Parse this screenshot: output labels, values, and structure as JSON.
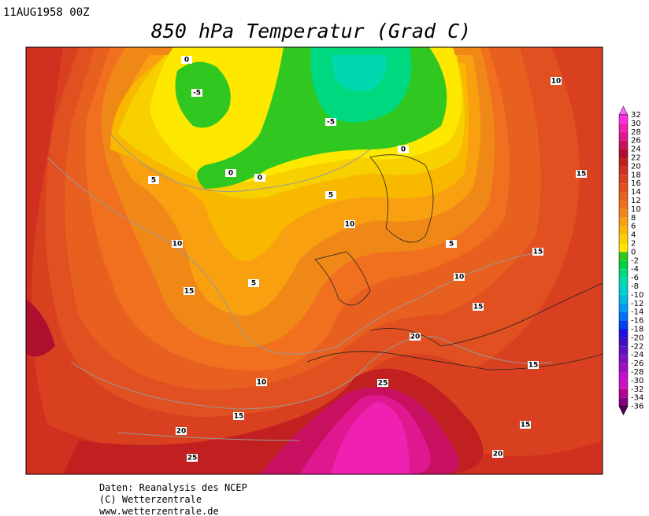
{
  "header": {
    "date": "11AUG1958 00Z",
    "title": "850 hPa Temperatur (Grad C)"
  },
  "footer": {
    "lines": [
      "Daten: Reanalysis des NCEP",
      "(C) Wetterzentrale",
      "www.wetterzentrale.de"
    ]
  },
  "colorbar": {
    "levels": [
      32,
      30,
      28,
      26,
      24,
      22,
      20,
      18,
      16,
      14,
      12,
      10,
      8,
      6,
      4,
      2,
      0,
      -2,
      -4,
      -6,
      -8,
      -10,
      -12,
      -14,
      -16,
      -18,
      -20,
      -22,
      -24,
      -26,
      -28,
      -30,
      -32,
      -34,
      -36
    ],
    "colors": [
      "#ff60ff",
      "#ff30e0",
      "#f020b0",
      "#e01890",
      "#c81060",
      "#b01030",
      "#c02020",
      "#d03020",
      "#d84020",
      "#e05020",
      "#e86020",
      "#f07020",
      "#f08818",
      "#f8a010",
      "#f8b800",
      "#f8d000",
      "#ffe800",
      "#30c820",
      "#00d040",
      "#00d880",
      "#00d8b0",
      "#00d0d0",
      "#00b8e0",
      "#0098f0",
      "#0070f8",
      "#0040f0",
      "#2010e0",
      "#4010c0",
      "#6010c0",
      "#8010c0",
      "#a010c0",
      "#c010d0",
      "#d010c0",
      "#b00090",
      "#800080",
      "#500050"
    ]
  },
  "contour_labels": [
    -5,
    0,
    -5,
    0,
    0,
    0,
    5,
    5,
    10,
    10,
    5,
    15,
    5,
    10,
    15,
    15,
    20,
    15,
    10,
    25,
    15,
    15,
    20,
    20,
    25,
    10,
    15
  ]
}
